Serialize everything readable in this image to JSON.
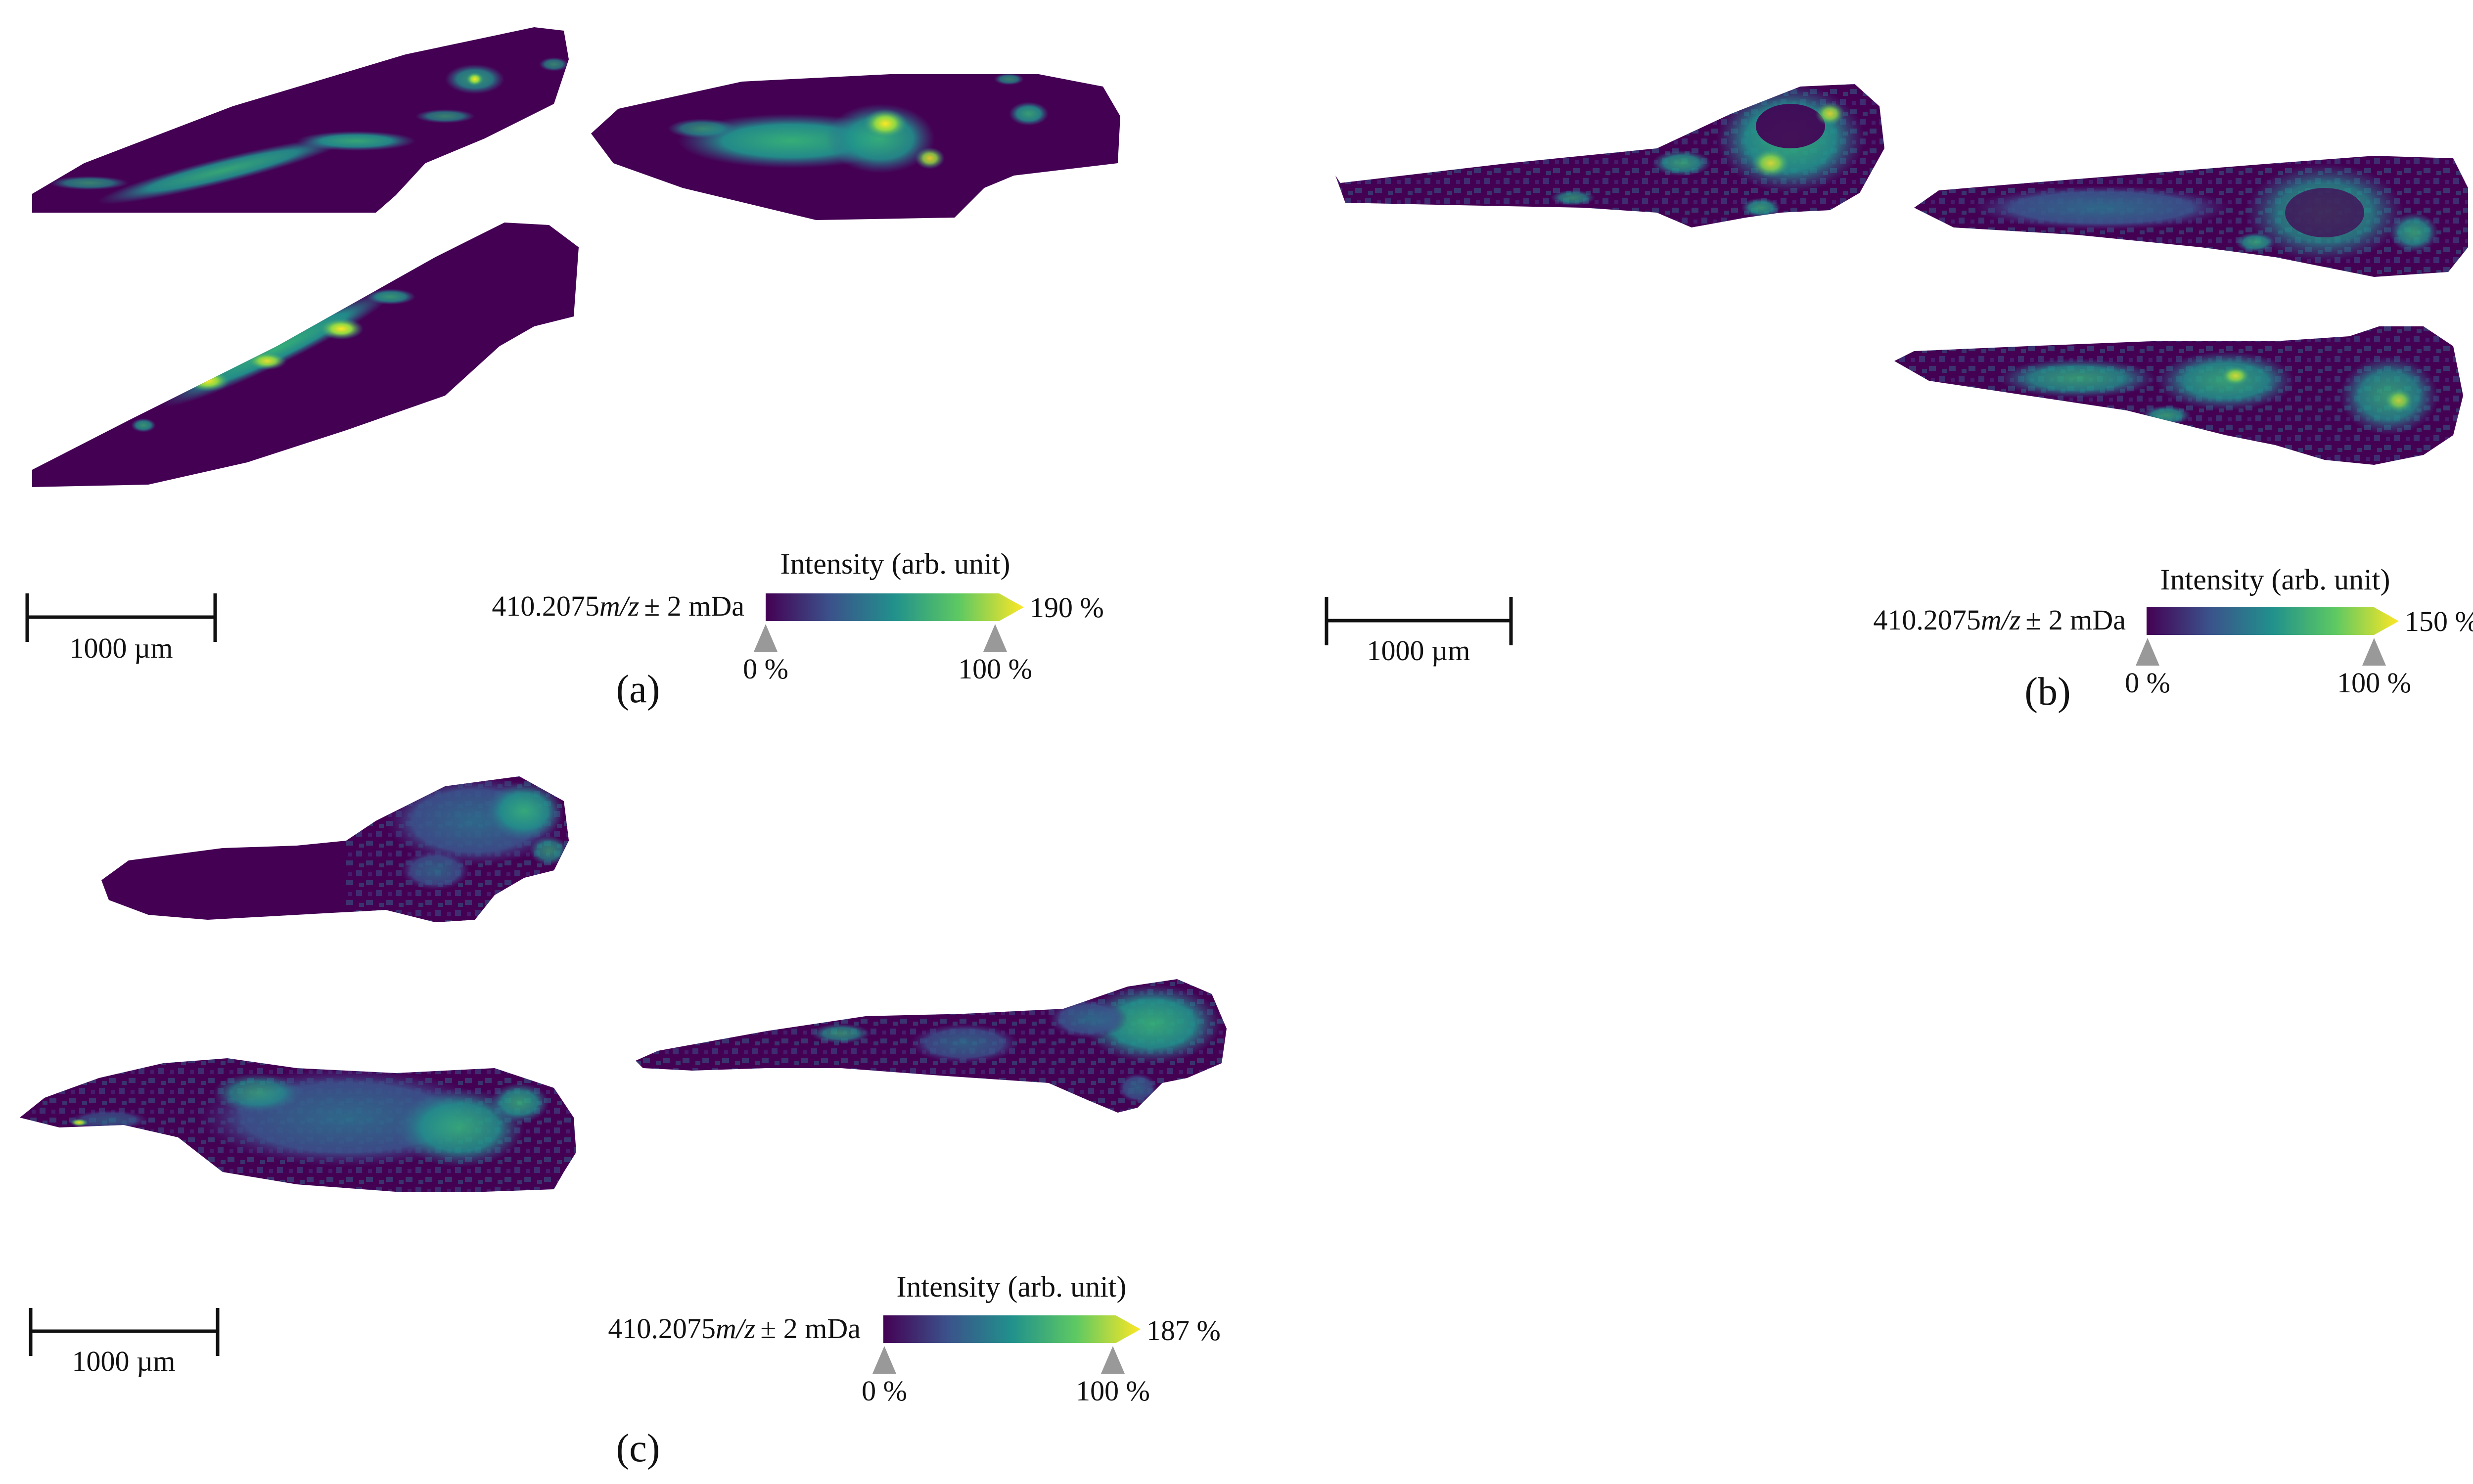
{
  "figure": {
    "panels": [
      {
        "id": "a",
        "caption": "(a)",
        "scalebar_label": "1000 µm",
        "colorbar": {
          "title": "Intensity (arb. unit)",
          "mass_prefix": "410.2075",
          "mass_unit": "m/z",
          "mass_tolerance": "± 2 mDa",
          "min_label": "0 %",
          "mid_label": "100 %",
          "max_label": "190 %",
          "max_percent": 190
        },
        "tissue_sections": 3
      },
      {
        "id": "b",
        "caption": "(b)",
        "scalebar_label": "1000 µm",
        "colorbar": {
          "title": "Intensity (arb. unit)",
          "mass_prefix": "410.2075",
          "mass_unit": "m/z",
          "mass_tolerance": "± 2 mDa",
          "min_label": "0 %",
          "mid_label": "100 %",
          "max_label": "150 %",
          "max_percent": 150
        },
        "tissue_sections": 3
      },
      {
        "id": "c",
        "caption": "(c)",
        "scalebar_label": "1000 µm",
        "colorbar": {
          "title": "Intensity (arb. unit)",
          "mass_prefix": "410.2075",
          "mass_unit": "m/z",
          "mass_tolerance": "± 2 mDa",
          "min_label": "0 %",
          "mid_label": "100 %",
          "max_label": "187 %",
          "max_percent": 187
        },
        "tissue_sections": 3
      }
    ],
    "colormap": {
      "name": "viridis",
      "stops": [
        "#440154",
        "#3b528b",
        "#21918c",
        "#5ec962",
        "#fde725"
      ]
    },
    "tissue_fill": "#440154",
    "marker_color": "#999999"
  }
}
